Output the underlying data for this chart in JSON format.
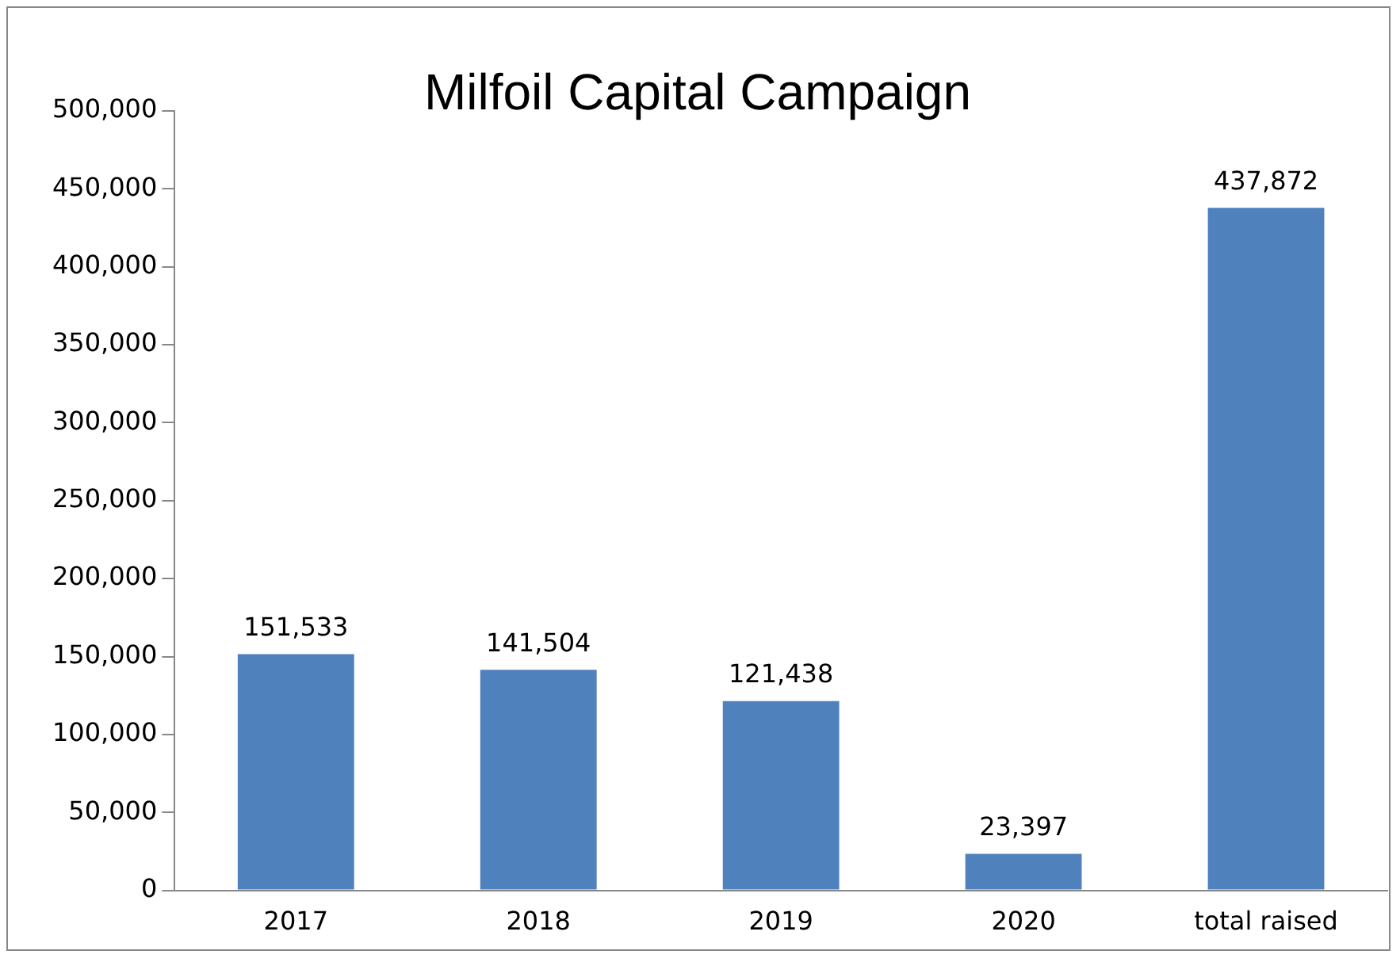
{
  "chart_data": {
    "type": "bar",
    "title": "Milfoil Capital Campaign",
    "categories": [
      "2017",
      "2018",
      "2019",
      "2020",
      "total raised"
    ],
    "values": [
      151533,
      141504,
      121438,
      23397,
      437872
    ],
    "value_labels": [
      "151,533",
      "141,504",
      "121,438",
      "23,397",
      "437,872"
    ],
    "color": "#4f81bd",
    "ylim": [
      0,
      500000
    ],
    "yticks": [
      {
        "value": 0,
        "label": "0"
      },
      {
        "value": 50000,
        "label": "50,000"
      },
      {
        "value": 100000,
        "label": "100,000"
      },
      {
        "value": 150000,
        "label": "150,000"
      },
      {
        "value": 200000,
        "label": "200,000"
      },
      {
        "value": 250000,
        "label": "250,000"
      },
      {
        "value": 300000,
        "label": "300,000"
      },
      {
        "value": 350000,
        "label": "350,000"
      },
      {
        "value": 400000,
        "label": "400,000"
      },
      {
        "value": 450000,
        "label": "450,000"
      },
      {
        "value": 500000,
        "label": "500,000"
      }
    ],
    "grid": false,
    "legend": false
  }
}
